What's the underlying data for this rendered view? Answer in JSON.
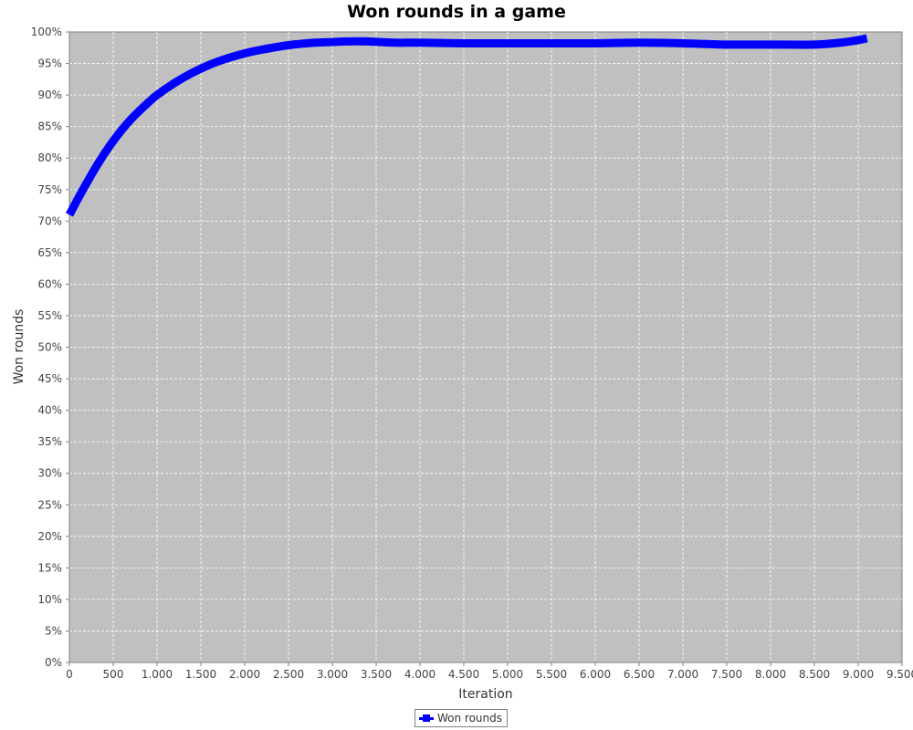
{
  "chart_data": {
    "type": "line",
    "title": "Won rounds in a game",
    "xlabel": "Iteration",
    "ylabel": "Won rounds",
    "xlim": [
      0,
      9500
    ],
    "ylim": [
      0,
      100
    ],
    "x_tick_labels": [
      "0",
      "500",
      "1.000",
      "1.500",
      "2.000",
      "2.500",
      "3.000",
      "3.500",
      "4.000",
      "4.500",
      "5.000",
      "5.500",
      "6.000",
      "6.500",
      "7.000",
      "7.500",
      "8.000",
      "8.500",
      "9.000",
      "9.500"
    ],
    "y_tick_labels": [
      "0%",
      "5%",
      "10%",
      "15%",
      "20%",
      "25%",
      "30%",
      "35%",
      "40%",
      "45%",
      "50%",
      "55%",
      "60%",
      "65%",
      "70%",
      "75%",
      "80%",
      "85%",
      "90%",
      "95%",
      "100%"
    ],
    "grid": true,
    "legend_position": "bottom-center",
    "background_color": "#c0c0c0",
    "series": [
      {
        "name": "Won rounds",
        "color": "#0000ff",
        "x": [
          0,
          100,
          200,
          300,
          400,
          500,
          600,
          700,
          800,
          900,
          1000,
          1200,
          1400,
          1600,
          1800,
          2000,
          2200,
          2500,
          2800,
          3000,
          3200,
          3400,
          3700,
          4000,
          4500,
          5000,
          5500,
          6000,
          6500,
          7000,
          7500,
          8000,
          8500,
          8800,
          9000,
          9100
        ],
        "values": [
          71.0,
          73.6,
          76.1,
          78.5,
          80.7,
          82.7,
          84.5,
          86.1,
          87.5,
          88.8,
          90.0,
          91.9,
          93.5,
          94.8,
          95.8,
          96.6,
          97.2,
          97.9,
          98.3,
          98.4,
          98.5,
          98.5,
          98.3,
          98.3,
          98.2,
          98.2,
          98.2,
          98.2,
          98.3,
          98.2,
          98.0,
          98.0,
          98.0,
          98.3,
          98.7,
          99.0
        ]
      }
    ]
  }
}
